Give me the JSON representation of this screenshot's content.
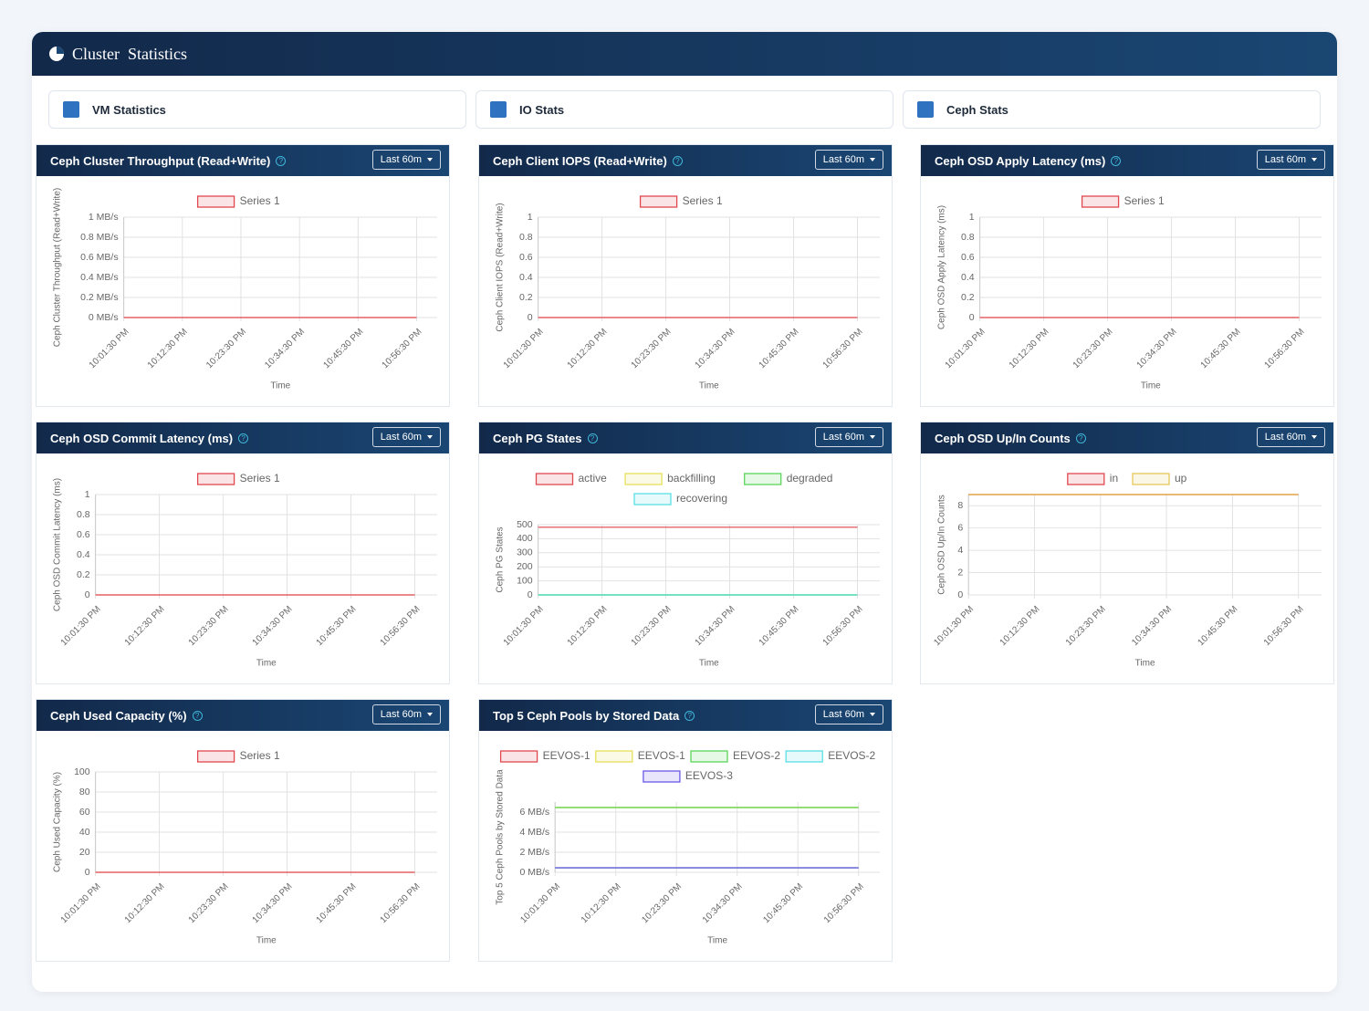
{
  "header": {
    "title": "Cluster  Statistics"
  },
  "tabs": [
    "VM Statistics",
    "IO Stats",
    "Ceph Stats"
  ],
  "chart_data": [
    {
      "type": "line",
      "title": "Ceph Cluster Throughput (Read+Write)",
      "range": "Last 60m",
      "y_label": "Ceph Cluster Throughput (Read+Write)",
      "x_label": "Time",
      "categories": [
        "10:01:30 PM",
        "10:12:30 PM",
        "10:23:30 PM",
        "10:34:30 PM",
        "10:45:30 PM",
        "10:56:30 PM"
      ],
      "series": [
        {
          "name": "Series 1",
          "color": "#e0484f",
          "values": [
            0,
            0,
            0,
            0,
            0,
            0
          ]
        }
      ],
      "ylim": [
        0,
        1
      ],
      "yticks": [
        {
          "value": 0,
          "label": "0 MB/s"
        },
        {
          "value": 0.2,
          "label": "0.2 MB/s"
        },
        {
          "value": 0.4,
          "label": "0.4 MB/s"
        },
        {
          "value": 0.6,
          "label": "0.6 MB/s"
        },
        {
          "value": 0.8,
          "label": "0.8 MB/s"
        },
        {
          "value": 1,
          "label": "1 MB/s"
        }
      ],
      "grid": true
    },
    {
      "type": "line",
      "title": "Ceph Client IOPS (Read+Write)",
      "range": "Last 60m",
      "y_label": "Ceph Client IOPS (Read+Write)",
      "x_label": "Time",
      "categories": [
        "10:01:30 PM",
        "10:12:30 PM",
        "10:23:30 PM",
        "10:34:30 PM",
        "10:45:30 PM",
        "10:56:30 PM"
      ],
      "series": [
        {
          "name": "Series 1",
          "color": "#e0484f",
          "values": [
            0,
            0,
            0,
            0,
            0,
            0
          ]
        }
      ],
      "ylim": [
        0,
        1
      ],
      "yticks": [
        0,
        0.2,
        0.4,
        0.6,
        0.8,
        1
      ],
      "grid": true
    },
    {
      "type": "line",
      "title": "Ceph OSD Apply Latency (ms)",
      "range": "Last 60m",
      "y_label": "Ceph OSD Apply Latency (ms)",
      "x_label": "Time",
      "categories": [
        "10:01:30 PM",
        "10:12:30 PM",
        "10:23:30 PM",
        "10:34:30 PM",
        "10:45:30 PM",
        "10:56:30 PM"
      ],
      "series": [
        {
          "name": "Series 1",
          "color": "#e0484f",
          "values": [
            0,
            0,
            0,
            0,
            0,
            0
          ]
        }
      ],
      "ylim": [
        0,
        1
      ],
      "yticks": [
        0,
        0.2,
        0.4,
        0.6,
        0.8,
        1
      ],
      "grid": true
    },
    {
      "type": "line",
      "title": "Ceph OSD Commit Latency (ms)",
      "range": "Last 60m",
      "y_label": "Ceph OSD Commit Latency (ms)",
      "x_label": "Time",
      "categories": [
        "10:01:30 PM",
        "10:12:30 PM",
        "10:23:30 PM",
        "10:34:30 PM",
        "10:45:30 PM",
        "10:56:30 PM"
      ],
      "series": [
        {
          "name": "Series 1",
          "color": "#e0484f",
          "values": [
            0,
            0,
            0,
            0,
            0,
            0
          ]
        }
      ],
      "ylim": [
        0,
        1
      ],
      "yticks": [
        0,
        0.2,
        0.4,
        0.6,
        0.8,
        1
      ],
      "grid": true
    },
    {
      "type": "line",
      "title": "Ceph PG States",
      "range": "Last 60m",
      "y_label": "Ceph PG States",
      "x_label": "Time",
      "categories": [
        "10:01:30 PM",
        "10:12:30 PM",
        "10:23:30 PM",
        "10:34:30 PM",
        "10:45:30 PM",
        "10:56:30 PM"
      ],
      "series": [
        {
          "name": "active",
          "color": "#e0484f",
          "values": [
            482,
            482,
            482,
            482,
            482,
            482
          ]
        },
        {
          "name": "backfilling",
          "color": "#e6e05a",
          "values": [
            0,
            0,
            0,
            0,
            0,
            0
          ]
        },
        {
          "name": "degraded",
          "color": "#5ad65a",
          "values": [
            0,
            0,
            0,
            0,
            0,
            0
          ]
        },
        {
          "name": "recovering",
          "color": "#5ae0e6",
          "values": [
            0,
            0,
            0,
            0,
            0,
            0
          ]
        }
      ],
      "ylim": [
        0,
        500
      ],
      "yticks": [
        0,
        100,
        200,
        300,
        400,
        500
      ],
      "grid": true
    },
    {
      "type": "line",
      "title": "Ceph OSD Up/In Counts",
      "range": "Last 60m",
      "y_label": "Ceph OSD Up/In Counts",
      "x_label": "Time",
      "categories": [
        "10:01:30 PM",
        "10:12:30 PM",
        "10:23:30 PM",
        "10:34:30 PM",
        "10:45:30 PM",
        "10:56:30 PM"
      ],
      "series": [
        {
          "name": "in",
          "color": "#e0484f",
          "values": [
            9,
            9,
            9,
            9,
            9,
            9
          ]
        },
        {
          "name": "up",
          "color": "#e6c85a",
          "values": [
            9,
            9,
            9,
            9,
            9,
            9
          ]
        }
      ],
      "ylim": [
        0,
        9
      ],
      "yticks": [
        0,
        2,
        4,
        6,
        8
      ],
      "grid": true
    },
    {
      "type": "line",
      "title": "Ceph Used Capacity (%)",
      "range": "Last 60m",
      "y_label": "Ceph Used Capacity (%)",
      "x_label": "Time",
      "categories": [
        "10:01:30 PM",
        "10:12:30 PM",
        "10:23:30 PM",
        "10:34:30 PM",
        "10:45:30 PM",
        "10:56:30 PM"
      ],
      "series": [
        {
          "name": "Series 1",
          "color": "#e0484f",
          "values": [
            0,
            0,
            0,
            0,
            0,
            0
          ]
        }
      ],
      "ylim": [
        0,
        100
      ],
      "yticks": [
        0,
        20,
        40,
        60,
        80,
        100
      ],
      "grid": true
    },
    {
      "type": "line",
      "title": "Top 5 Ceph Pools by Stored Data",
      "range": "Last 60m",
      "y_label": "Top 5 Ceph Pools by Stored Data",
      "x_label": "Time",
      "categories": [
        "10:01:30 PM",
        "10:12:30 PM",
        "10:23:30 PM",
        "10:34:30 PM",
        "10:45:30 PM",
        "10:56:30 PM"
      ],
      "series": [
        {
          "name": "EEVOS-1",
          "color": "#e0484f",
          "values": [
            0.45,
            0.45,
            0.45,
            0.45,
            0.45,
            0.45
          ]
        },
        {
          "name": "EEVOS-1",
          "color": "#e6e05a",
          "values": [
            6.45,
            6.45,
            6.45,
            6.45,
            6.45,
            6.45
          ]
        },
        {
          "name": "EEVOS-2",
          "color": "#5ad65a",
          "values": [
            6.45,
            6.45,
            6.45,
            6.45,
            6.45,
            6.45
          ]
        },
        {
          "name": "EEVOS-2",
          "color": "#5ae0e6",
          "values": [
            0.45,
            0.45,
            0.45,
            0.45,
            0.45,
            0.45
          ]
        },
        {
          "name": "EEVOS-3",
          "color": "#6a5ae6",
          "values": [
            0.45,
            0.45,
            0.45,
            0.45,
            0.45,
            0.45
          ]
        }
      ],
      "ylim": [
        0,
        7
      ],
      "yticks": [
        {
          "value": 0,
          "label": "0 MB/s"
        },
        {
          "value": 2,
          "label": "2 MB/s"
        },
        {
          "value": 4,
          "label": "4 MB/s"
        },
        {
          "value": 6,
          "label": "6 MB/s"
        }
      ],
      "grid": true
    }
  ]
}
